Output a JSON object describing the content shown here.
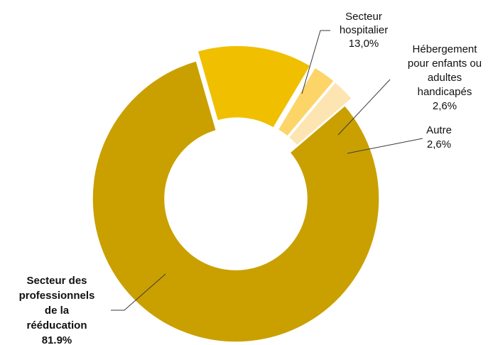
{
  "chart_data": {
    "type": "pie",
    "style": "donut-exploded",
    "slices": [
      {
        "name": "Secteur hospitalier",
        "label_lines": [
          "Secteur",
          "hospitalier"
        ],
        "value": 13.0,
        "value_text": "13,0%",
        "color": "#EFBF00",
        "bold": false
      },
      {
        "name": "Hébergement pour enfants ou adultes handicapés",
        "label_lines": [
          "Hébergement",
          "pour enfants ou",
          "adultes",
          "handicapés"
        ],
        "value": 2.6,
        "value_text": "2,6%",
        "color": "#FDD468",
        "bold": false
      },
      {
        "name": "Autre",
        "label_lines": [
          "Autre"
        ],
        "value": 2.6,
        "value_text": "2,6%",
        "color": "#FDE5B2",
        "bold": false
      },
      {
        "name": "Secteur des professionnels de la rééducation",
        "label_lines": [
          "Secteur des",
          "professionnels",
          "de la",
          "rééducation"
        ],
        "value": 81.9,
        "value_text": "81.9%",
        "color": "#C9A000",
        "bold": true
      }
    ]
  }
}
